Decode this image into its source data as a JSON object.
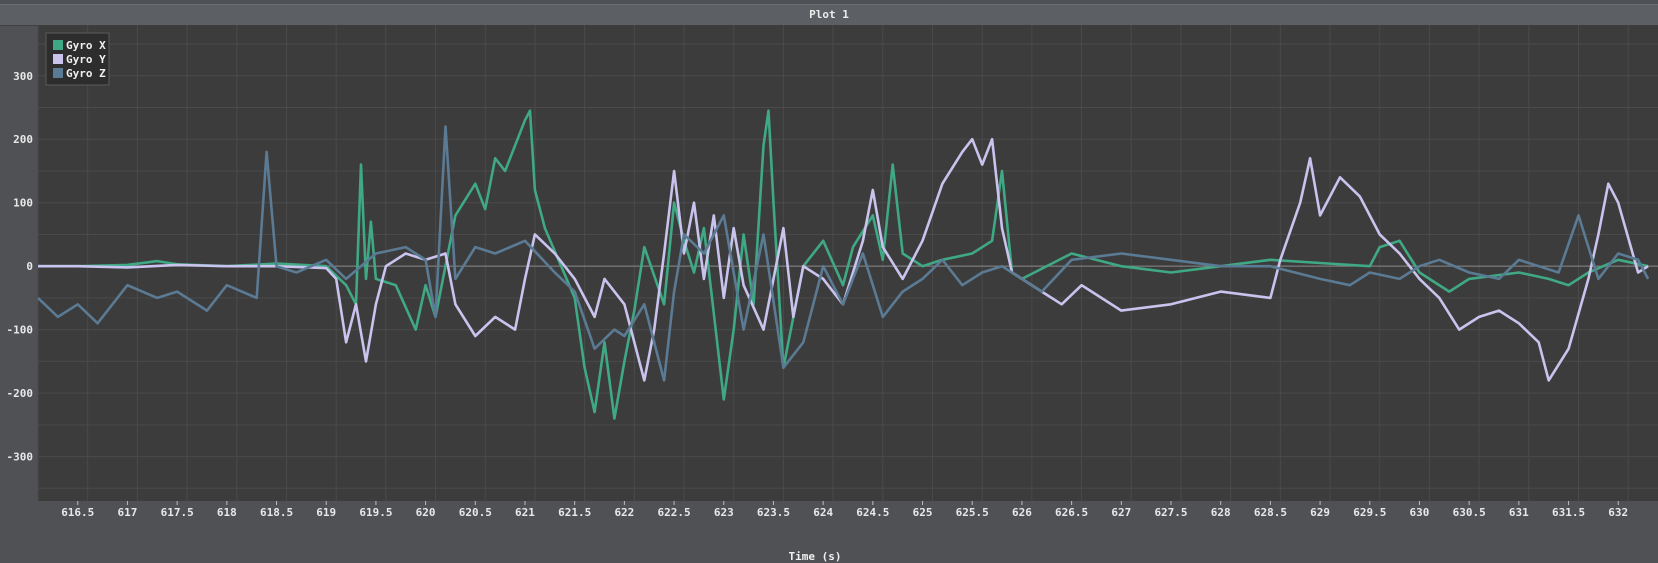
{
  "window": {
    "title": "Plot 1"
  },
  "chart_data": {
    "type": "line",
    "title": "Plot 1",
    "xlabel": "Time (s)",
    "ylabel": "",
    "xlim": [
      616.1,
      632.4
    ],
    "ylim": [
      -370,
      380
    ],
    "x_ticks": [
      "616.5",
      "617",
      "617.5",
      "618",
      "618.5",
      "619",
      "619.5",
      "620",
      "620.5",
      "621",
      "621.5",
      "622",
      "622.5",
      "623",
      "623.5",
      "624",
      "624.5",
      "625",
      "625.5",
      "626",
      "626.5",
      "627",
      "627.5",
      "628",
      "628.5",
      "629",
      "629.5",
      "630",
      "630.5",
      "631",
      "631.5",
      "632"
    ],
    "y_ticks": [
      "300",
      "200",
      "100",
      "0",
      "-100",
      "-200",
      "-300"
    ],
    "grid": true,
    "legend_position": "top-left",
    "series": [
      {
        "name": "Gyro X",
        "color": "#3fa884",
        "x": [
          616.1,
          616.5,
          617,
          617.3,
          617.5,
          618,
          618.5,
          619,
          619.2,
          619.3,
          619.35,
          619.4,
          619.45,
          619.5,
          619.7,
          619.9,
          620,
          620.1,
          620.3,
          620.5,
          620.6,
          620.7,
          620.8,
          621,
          621.05,
          621.1,
          621.2,
          621.5,
          621.6,
          621.7,
          621.8,
          621.9,
          622,
          622.1,
          622.2,
          622.4,
          622.5,
          622.6,
          622.7,
          622.8,
          623,
          623.1,
          623.2,
          623.3,
          623.4,
          623.45,
          623.5,
          623.6,
          623.8,
          624,
          624.2,
          624.3,
          624.5,
          624.6,
          624.7,
          624.8,
          625,
          625.2,
          625.5,
          625.7,
          625.8,
          625.9,
          626,
          626.5,
          627,
          627.5,
          628,
          628.5,
          629,
          629.5,
          629.6,
          629.8,
          630,
          630.3,
          630.5,
          631,
          631.3,
          631.5,
          631.7,
          632,
          632.3
        ],
        "y": [
          0,
          0,
          2,
          8,
          3,
          0,
          4,
          0,
          -30,
          -60,
          160,
          -20,
          70,
          -20,
          -30,
          -100,
          -30,
          -80,
          80,
          130,
          90,
          170,
          150,
          230,
          245,
          120,
          60,
          -50,
          -160,
          -230,
          -120,
          -240,
          -150,
          -70,
          30,
          -60,
          100,
          40,
          -10,
          60,
          -210,
          -100,
          50,
          -60,
          190,
          245,
          100,
          -160,
          0,
          40,
          -30,
          30,
          80,
          10,
          160,
          20,
          0,
          10,
          20,
          40,
          150,
          -10,
          -20,
          20,
          0,
          -10,
          0,
          10,
          5,
          0,
          30,
          40,
          -10,
          -40,
          -20,
          -10,
          -20,
          -30,
          -10,
          10,
          0
        ]
      },
      {
        "name": "Gyro Y",
        "color": "#c9c3ee",
        "x": [
          616.1,
          616.5,
          617,
          617.5,
          618,
          618.5,
          619,
          619.1,
          619.2,
          619.3,
          619.4,
          619.5,
          619.6,
          619.8,
          620,
          620.2,
          620.3,
          620.5,
          620.7,
          620.9,
          621,
          621.1,
          621.3,
          621.5,
          621.7,
          621.8,
          622,
          622.2,
          622.3,
          622.4,
          622.5,
          622.6,
          622.7,
          622.8,
          622.9,
          623,
          623.1,
          623.2,
          623.4,
          623.5,
          623.6,
          623.7,
          623.8,
          624,
          624.2,
          624.4,
          624.5,
          624.6,
          624.8,
          625,
          625.2,
          625.4,
          625.5,
          625.6,
          625.7,
          625.8,
          625.9,
          626,
          626.2,
          626.4,
          626.6,
          626.8,
          627,
          627.5,
          628,
          628.5,
          628.6,
          628.8,
          628.9,
          629,
          629.2,
          629.4,
          629.6,
          629.8,
          630,
          630.2,
          630.4,
          630.6,
          630.8,
          631,
          631.2,
          631.3,
          631.5,
          631.7,
          631.8,
          631.9,
          632,
          632.2,
          632.3
        ],
        "y": [
          0,
          0,
          -2,
          2,
          0,
          0,
          -3,
          -20,
          -120,
          -60,
          -150,
          -60,
          0,
          20,
          10,
          20,
          -60,
          -110,
          -80,
          -100,
          -20,
          50,
          20,
          -20,
          -80,
          -20,
          -60,
          -180,
          -100,
          20,
          150,
          20,
          100,
          -20,
          80,
          -50,
          60,
          -30,
          -100,
          -20,
          60,
          -80,
          0,
          -20,
          -60,
          40,
          120,
          30,
          -20,
          40,
          130,
          180,
          200,
          160,
          200,
          60,
          -10,
          -20,
          -40,
          -60,
          -30,
          -50,
          -70,
          -60,
          -40,
          -50,
          10,
          100,
          170,
          80,
          140,
          110,
          50,
          20,
          -20,
          -50,
          -100,
          -80,
          -70,
          -90,
          -120,
          -180,
          -130,
          -20,
          50,
          130,
          100,
          -10,
          0
        ]
      },
      {
        "name": "Gyro Z",
        "color": "#5b7a93",
        "x": [
          616.1,
          616.3,
          616.5,
          616.7,
          617,
          617.3,
          617.5,
          617.8,
          618,
          618.3,
          618.4,
          618.5,
          618.7,
          619,
          619.2,
          619.5,
          619.8,
          620,
          620.1,
          620.2,
          620.3,
          620.5,
          620.7,
          621,
          621.3,
          621.5,
          621.7,
          621.9,
          622,
          622.2,
          622.4,
          622.5,
          622.6,
          622.8,
          623,
          623.2,
          623.4,
          623.6,
          623.8,
          624,
          624.2,
          624.4,
          624.6,
          624.8,
          625,
          625.2,
          625.4,
          625.6,
          625.8,
          626,
          626.2,
          626.5,
          627,
          627.5,
          628,
          628.5,
          629,
          629.3,
          629.5,
          629.8,
          630,
          630.2,
          630.5,
          630.8,
          631,
          631.2,
          631.4,
          631.6,
          631.8,
          632,
          632.2,
          632.3
        ],
        "y": [
          -50,
          -80,
          -60,
          -90,
          -30,
          -50,
          -40,
          -70,
          -30,
          -50,
          180,
          0,
          -10,
          10,
          -20,
          20,
          30,
          10,
          -80,
          220,
          -20,
          30,
          20,
          40,
          -10,
          -40,
          -130,
          -100,
          -110,
          -60,
          -180,
          -40,
          50,
          20,
          80,
          -100,
          50,
          -160,
          -120,
          0,
          -60,
          20,
          -80,
          -40,
          -20,
          10,
          -30,
          -10,
          0,
          -20,
          -40,
          10,
          20,
          10,
          0,
          0,
          -20,
          -30,
          -10,
          -20,
          0,
          10,
          -10,
          -20,
          10,
          0,
          -10,
          80,
          -20,
          20,
          10,
          -20
        ]
      }
    ]
  }
}
